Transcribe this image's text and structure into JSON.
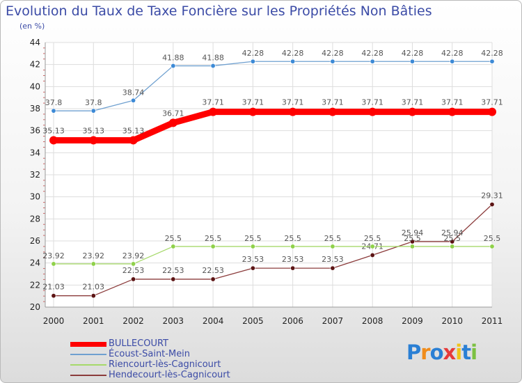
{
  "title": "Evolution du Taux de Taxe Foncière sur les Propriétés Non Bâties",
  "subtitle": "(en %)",
  "logo": {
    "text": "Proxiti",
    "colors": [
      "#2a7fd4",
      "#f08c1b",
      "#2a7fd4",
      "#e63a3a",
      "#f0c419",
      "#2a7fd4",
      "#7cc142"
    ]
  },
  "chart_data": {
    "type": "line",
    "title": "Evolution du Taux de Taxe Foncière sur les Propriétés Non Bâties",
    "ylabel": "(en %)",
    "xlabel": "",
    "ylim": [
      20,
      44
    ],
    "yticks": [
      20,
      22,
      24,
      26,
      28,
      30,
      32,
      34,
      36,
      38,
      40,
      42,
      44
    ],
    "grid": true,
    "legend_position": "bottom-left",
    "x": [
      "2000",
      "2001",
      "2002",
      "2003",
      "2004",
      "2005",
      "2006",
      "2007",
      "2008",
      "2009",
      "2010",
      "2011"
    ],
    "series": [
      {
        "name": "Écoust-Saint-Mein",
        "color": "#6fa0d0",
        "marker": "#3d8ad6",
        "values": [
          37.8,
          37.8,
          38.74,
          41.88,
          41.88,
          42.28,
          42.28,
          42.28,
          42.28,
          42.28,
          42.28,
          42.28
        ],
        "labels": [
          "37.8",
          "37.8",
          "38.74",
          "41.88",
          "41.88",
          "42.28",
          "42.28",
          "42.28",
          "42.28",
          "42.28",
          "42.28",
          "42.28"
        ]
      },
      {
        "name": "BULLECOURT",
        "color": "#ff0000",
        "marker": "#ff0000",
        "values": [
          35.13,
          35.13,
          35.13,
          36.71,
          37.71,
          37.71,
          37.71,
          37.71,
          37.71,
          37.71,
          37.71,
          37.71
        ],
        "labels": [
          "35.13",
          "35.13",
          "35.13",
          "36.71",
          "37.71",
          "37.71",
          "37.71",
          "37.71",
          "37.71",
          "37.71",
          "37.71",
          "37.71"
        ]
      },
      {
        "name": "Riencourt-lès-Cagnicourt",
        "color": "#a6d96a",
        "marker": "#8fd14a",
        "values": [
          23.92,
          23.92,
          23.92,
          25.5,
          25.5,
          25.5,
          25.5,
          25.5,
          25.5,
          25.5,
          25.5,
          25.5
        ],
        "labels": [
          "23.92",
          "23.92",
          "23.92",
          "25.5",
          "25.5",
          "25.5",
          "25.5",
          "25.5",
          "25.5",
          "25.5",
          "25.5",
          "25.5"
        ]
      },
      {
        "name": "Hendecourt-lès-Cagnicourt",
        "color": "#8b3b3b",
        "marker": "#5c1414",
        "values": [
          21.03,
          21.03,
          22.53,
          22.53,
          22.53,
          23.53,
          23.53,
          23.53,
          24.71,
          25.94,
          25.94,
          29.31
        ],
        "labels": [
          "21.03",
          "21.03",
          "22.53",
          "22.53",
          "22.53",
          "23.53",
          "23.53",
          "23.53",
          "24.71",
          "25.94",
          "25.94",
          "29.31"
        ]
      }
    ],
    "legend_order": [
      "BULLECOURT",
      "Écoust-Saint-Mein",
      "Riencourt-lès-Cagnicourt",
      "Hendecourt-lès-Cagnicourt"
    ]
  }
}
